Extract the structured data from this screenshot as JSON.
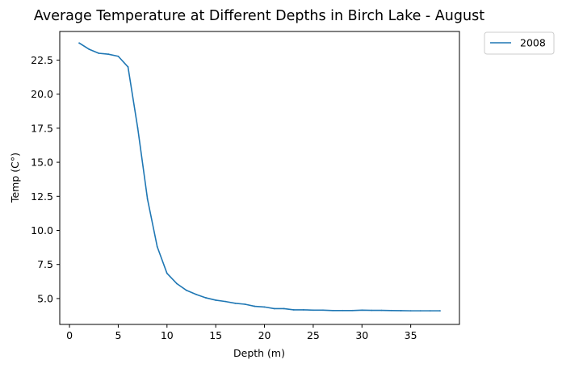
{
  "chart_data": {
    "type": "line",
    "title": "Average Temperature at Different Depths in Birch Lake - August",
    "xlabel": "Depth (m)",
    "ylabel": "Temp (C°)",
    "xlim": [
      -1,
      40
    ],
    "ylim": [
      3.1,
      24.6
    ],
    "xticks": [
      0,
      5,
      10,
      15,
      20,
      25,
      30,
      35
    ],
    "yticks": [
      5.0,
      7.5,
      10.0,
      12.5,
      15.0,
      17.5,
      20.0,
      22.5
    ],
    "xtick_labels": [
      "0",
      "5",
      "10",
      "15",
      "20",
      "25",
      "30",
      "35"
    ],
    "ytick_labels": [
      "5.0",
      "7.5",
      "10.0",
      "12.5",
      "15.0",
      "17.5",
      "20.0",
      "22.5"
    ],
    "grid": false,
    "legend_position": "outside-top-right",
    "series": [
      {
        "name": "2008",
        "color": "#1f77b4",
        "x": [
          1,
          2,
          3,
          4,
          5,
          6,
          7,
          8,
          9,
          10,
          11,
          12,
          13,
          14,
          15,
          16,
          17,
          18,
          19,
          20,
          21,
          22,
          23,
          24,
          25,
          26,
          27,
          28,
          29,
          30,
          31,
          32,
          33,
          34,
          35,
          36,
          37,
          38
        ],
        "y": [
          23.75,
          23.3,
          23.0,
          22.93,
          22.78,
          22.0,
          17.5,
          12.3,
          8.8,
          6.85,
          6.1,
          5.6,
          5.3,
          5.05,
          4.88,
          4.78,
          4.65,
          4.58,
          4.43,
          4.38,
          4.26,
          4.26,
          4.17,
          4.17,
          4.15,
          4.15,
          4.12,
          4.12,
          4.12,
          4.15,
          4.13,
          4.13,
          4.12,
          4.11,
          4.1,
          4.1,
          4.1,
          4.1
        ]
      }
    ]
  }
}
